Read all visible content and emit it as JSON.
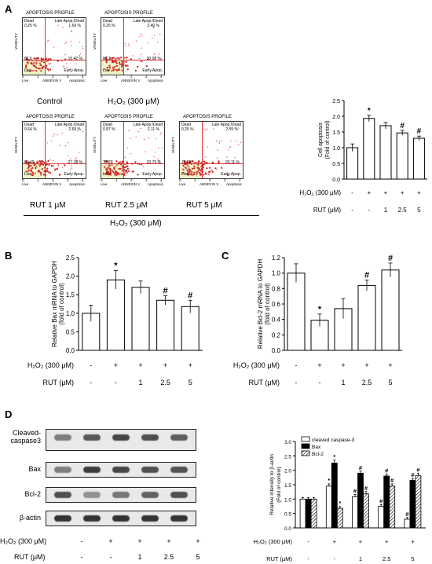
{
  "panels": {
    "a": "A",
    "b": "B",
    "c": "C",
    "d": "D"
  },
  "flow": {
    "title": "APOPTOSIS PROFILE",
    "q_dead": "Dead",
    "q_late": "Late Apop./Dead",
    "q_live": "Live",
    "q_early": "Early Apop.",
    "y_axis": "VIABILITY",
    "x_axis": "ANNEXIN V",
    "x_live": "Live",
    "x_apop": "Apoptosis",
    "ticks": [
      "0",
      "1",
      "2",
      "3",
      "4"
    ],
    "plots": [
      {
        "dead": "0.25 %",
        "late": "1.69 %",
        "live": "82.6",
        "early": "15.42 %",
        "caption": "Control"
      },
      {
        "dead": "0.25 %",
        "late": "3.40 %",
        "live": "66.2",
        "early": "30.08 %",
        "caption": "H₂O₂ (300 μM)"
      },
      {
        "dead": "0.64 %",
        "late": "2.69 %",
        "live": "69.49",
        "early": "27.18 %",
        "caption": "RUT  1 μM"
      },
      {
        "dead": "0.87 %",
        "late": "2.11 %",
        "live": "73.23",
        "early": "23.79 %",
        "caption": "RUT  2.5 μM"
      },
      {
        "dead": "0.25 %",
        "late": "2.55 %",
        "live": "77.09",
        "early": "20.11 %",
        "caption": "RUT  5 μM"
      }
    ],
    "bottom_caption": "H₂O₂  (300 μM)"
  },
  "treatment": {
    "h2o2_label": "H₂O₂ (300 μM)",
    "rut_label": "RUT  (μM)",
    "h2o2": [
      "-",
      "+",
      "+",
      "+",
      "+"
    ],
    "rut": [
      "-",
      "-",
      "1",
      "2.5",
      "5"
    ]
  },
  "chart_data": [
    {
      "type": "bar",
      "panel": "A",
      "ylabel": "Cell apoptosis\n(Fold of control)",
      "ylim": [
        0,
        2.5
      ],
      "yticks": [
        "0.0",
        "0.5",
        "1.0",
        "1.5",
        "2.0",
        "2.5"
      ],
      "values": [
        1.0,
        1.93,
        1.7,
        1.47,
        1.3
      ],
      "errors": [
        0.12,
        0.1,
        0.1,
        0.08,
        0.07
      ],
      "annotations": [
        "",
        "*",
        "",
        "#",
        "#"
      ]
    },
    {
      "type": "bar",
      "panel": "B",
      "ylabel": "Relative Bax mRNA to GAPDH\n(fold of control)",
      "ylim": [
        0,
        2.5
      ],
      "yticks": [
        "0.0",
        "0.5",
        "1.0",
        "1.5",
        "2.0",
        "2.5"
      ],
      "values": [
        1.0,
        1.9,
        1.7,
        1.35,
        1.18
      ],
      "errors": [
        0.22,
        0.25,
        0.17,
        0.12,
        0.17
      ],
      "annotations": [
        "",
        "*",
        "",
        "#",
        "#"
      ]
    },
    {
      "type": "bar",
      "panel": "C",
      "ylabel": "Relative Bcl-2 mRNA to GAPDH\n(fold of control)",
      "ylim": [
        0,
        1.2
      ],
      "yticks": [
        "0.0",
        "0.2",
        "0.4",
        "0.6",
        "0.8",
        "1.0",
        "1.2"
      ],
      "values": [
        1.0,
        0.39,
        0.54,
        0.84,
        1.04
      ],
      "errors": [
        0.12,
        0.08,
        0.13,
        0.07,
        0.09
      ],
      "annotations": [
        "",
        "*",
        "",
        "#",
        "#"
      ]
    },
    {
      "type": "bar",
      "panel": "D",
      "ylabel": "Relative intensity to β-actin\n(Fold of control)",
      "ylim": [
        0,
        3.0
      ],
      "yticks": [
        "0.0",
        "0.5",
        "1.0",
        "1.5",
        "2.0",
        "2.5",
        "3.0"
      ],
      "series": [
        {
          "name": "cleaved caspase-3",
          "values": [
            1.0,
            1.45,
            1.08,
            0.75,
            0.3
          ],
          "errors": [
            0.05,
            0.08,
            0.08,
            0.06,
            0.06
          ],
          "annotations": [
            "",
            "*",
            "#",
            "#",
            "#"
          ]
        },
        {
          "name": "Bax",
          "values": [
            1.0,
            2.25,
            1.9,
            1.8,
            1.65
          ],
          "errors": [
            0.05,
            0.1,
            0.07,
            0.07,
            0.07
          ],
          "annotations": [
            "",
            "*",
            "#",
            "#",
            "#"
          ]
        },
        {
          "name": "Bcl-2",
          "values": [
            1.0,
            0.68,
            1.18,
            1.45,
            1.82
          ],
          "errors": [
            0.05,
            0.06,
            0.08,
            0.08,
            0.08
          ],
          "annotations": [
            "",
            "*",
            "#",
            "#",
            "#"
          ]
        }
      ]
    }
  ],
  "blot": {
    "rows": [
      {
        "label": "Cleaved-\ncaspase3",
        "intens": [
          0.55,
          0.75,
          0.85,
          0.8,
          0.72
        ]
      },
      {
        "label": "Bax",
        "intens": [
          0.55,
          0.9,
          0.85,
          0.8,
          0.78
        ]
      },
      {
        "label": "Bcl-2",
        "intens": [
          0.8,
          0.45,
          0.6,
          0.7,
          0.8
        ]
      },
      {
        "label": "β-actin",
        "intens": [
          0.95,
          0.95,
          0.95,
          0.95,
          0.95
        ]
      }
    ]
  }
}
